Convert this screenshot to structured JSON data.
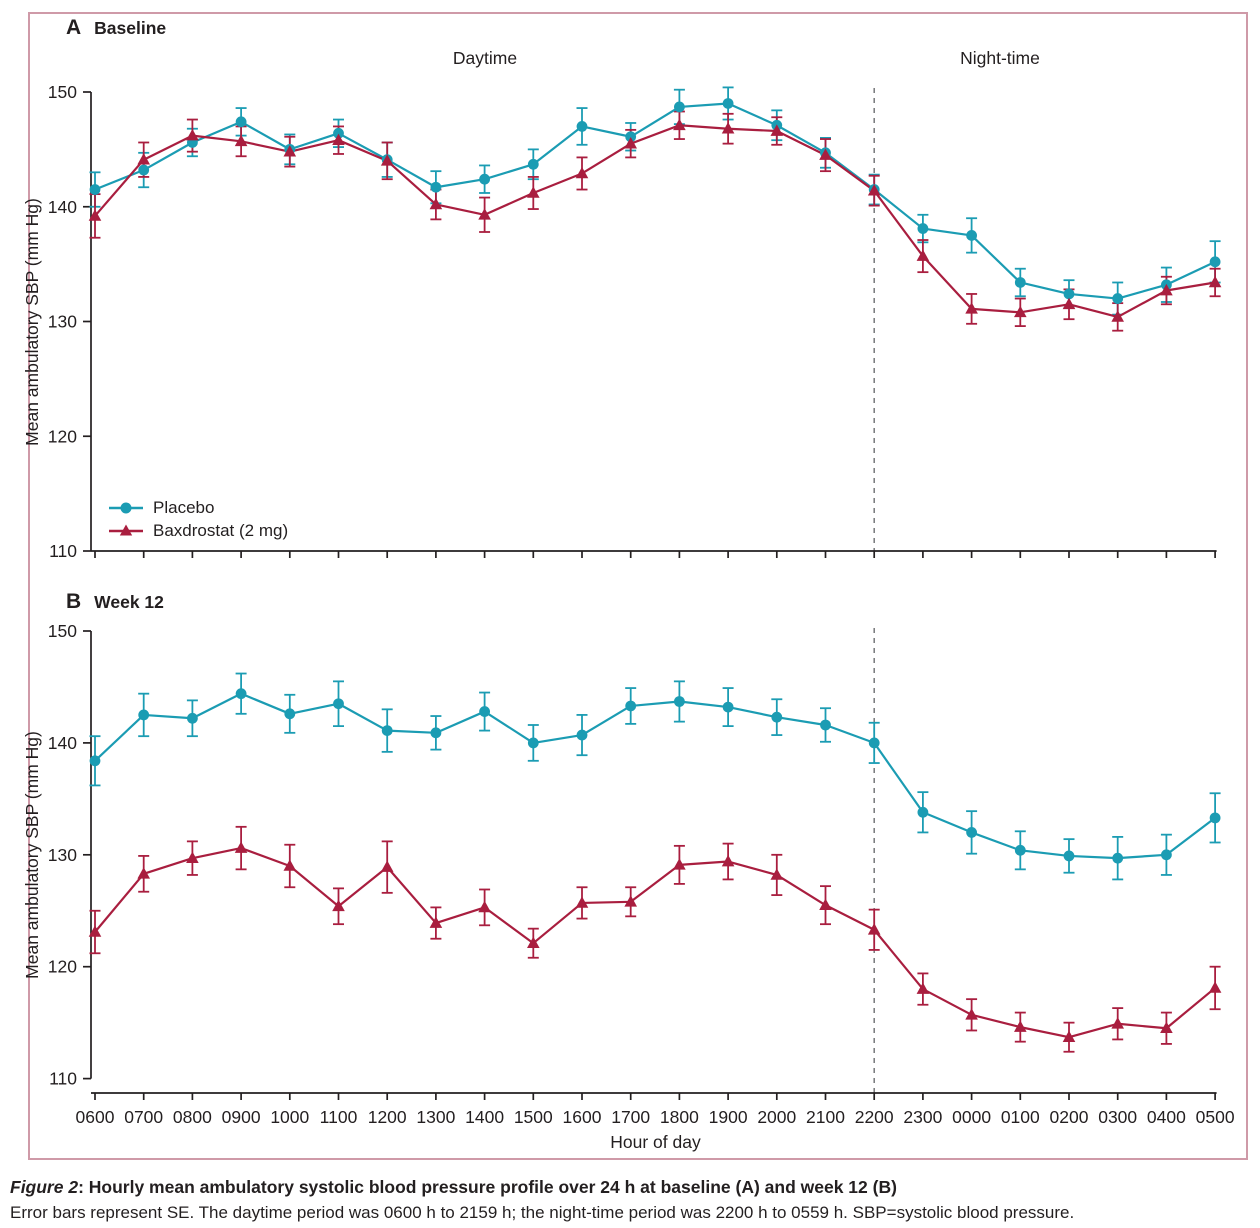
{
  "figure": {
    "panels": [
      {
        "label": "A",
        "title": "Baseline"
      },
      {
        "label": "B",
        "title": "Week 12"
      }
    ],
    "region_labels": {
      "daytime": "Daytime",
      "night": "Night-time"
    },
    "y_axis_label": "Mean ambulatory SBP (mm Hg)",
    "x_axis_label": "Hour of day",
    "legend": [
      {
        "label": "Placebo"
      },
      {
        "label": "Baxdrostat (2 mg)"
      }
    ],
    "caption": {
      "figure_label": "Figure 2",
      "title_rest": ": Hourly mean ambulatory systolic blood pressure profile over 24 h at baseline (A) and week 12 (B)",
      "note": "Error bars represent SE. The daytime period was 0600 h to 2159 h; the night-time period was 2200 h to 0559 h. SBP=systolic blood pressure."
    },
    "colors": {
      "placebo": "#1b9cb3",
      "baxdrostat": "#a91e3f",
      "frame": "#cf9aa8",
      "axis": "#231f20",
      "dashed": "#76777a"
    }
  },
  "chart_data": [
    {
      "type": "line",
      "panel": "A",
      "title": "Baseline",
      "xlabel": "Hour of day",
      "ylabel": "Mean ambulatory SBP (mm Hg)",
      "ylim": [
        110,
        150
      ],
      "yticks": [
        150,
        140,
        130,
        120,
        110
      ],
      "x": [
        "0600",
        "0700",
        "0800",
        "0900",
        "1000",
        "1100",
        "1200",
        "1300",
        "1400",
        "1500",
        "1600",
        "1700",
        "1800",
        "1900",
        "2000",
        "2100",
        "2200",
        "2300",
        "0000",
        "0100",
        "0200",
        "0300",
        "0400",
        "0500"
      ],
      "dashed_line_at": "2200",
      "grid": false,
      "legend_position": "lower-left",
      "series": [
        {
          "name": "Placebo",
          "marker": "circle",
          "color": "#1b9cb3",
          "values": [
            141.5,
            143.2,
            145.6,
            147.4,
            145.0,
            146.4,
            144.1,
            141.7,
            142.4,
            143.7,
            147.0,
            146.1,
            148.7,
            149.0,
            147.1,
            144.7,
            141.5,
            138.1,
            137.5,
            133.4,
            132.4,
            132.0,
            133.2,
            135.2
          ],
          "se": [
            1.5,
            1.5,
            1.2,
            1.2,
            1.3,
            1.2,
            1.5,
            1.4,
            1.2,
            1.3,
            1.6,
            1.2,
            1.5,
            1.4,
            1.3,
            1.3,
            1.3,
            1.2,
            1.5,
            1.2,
            1.2,
            1.4,
            1.5,
            1.8
          ]
        },
        {
          "name": "Baxdrostat (2 mg)",
          "marker": "triangle",
          "color": "#a91e3f",
          "values": [
            139.2,
            144.1,
            146.2,
            145.7,
            144.8,
            145.8,
            144.0,
            140.2,
            139.3,
            141.2,
            142.9,
            145.5,
            147.1,
            146.8,
            146.6,
            144.5,
            141.4,
            135.7,
            131.1,
            130.8,
            131.5,
            130.4,
            132.7,
            133.4
          ],
          "se": [
            1.9,
            1.5,
            1.4,
            1.3,
            1.3,
            1.2,
            1.6,
            1.3,
            1.5,
            1.4,
            1.4,
            1.2,
            1.2,
            1.3,
            1.2,
            1.4,
            1.3,
            1.4,
            1.3,
            1.2,
            1.3,
            1.2,
            1.2,
            1.2
          ]
        }
      ]
    },
    {
      "type": "line",
      "panel": "B",
      "title": "Week 12",
      "xlabel": "Hour of day",
      "ylabel": "Mean ambulatory SBP (mm Hg)",
      "ylim": [
        110,
        150
      ],
      "yticks": [
        150,
        140,
        130,
        120,
        110
      ],
      "x": [
        "0600",
        "0700",
        "0800",
        "0900",
        "1000",
        "1100",
        "1200",
        "1300",
        "1400",
        "1500",
        "1600",
        "1700",
        "1800",
        "1900",
        "2000",
        "2100",
        "2200",
        "2300",
        "0000",
        "0100",
        "0200",
        "0300",
        "0400",
        "0500"
      ],
      "dashed_line_at": "2200",
      "grid": false,
      "series": [
        {
          "name": "Placebo",
          "marker": "circle",
          "color": "#1b9cb3",
          "values": [
            138.4,
            142.5,
            142.2,
            144.4,
            142.6,
            143.5,
            141.1,
            140.9,
            142.8,
            140.0,
            140.7,
            143.3,
            143.7,
            143.2,
            142.3,
            141.6,
            140.0,
            133.8,
            132.0,
            130.4,
            129.9,
            129.7,
            130.0,
            133.3
          ],
          "se": [
            2.2,
            1.9,
            1.6,
            1.8,
            1.7,
            2.0,
            1.9,
            1.5,
            1.7,
            1.6,
            1.8,
            1.6,
            1.8,
            1.7,
            1.6,
            1.5,
            1.8,
            1.8,
            1.9,
            1.7,
            1.5,
            1.9,
            1.8,
            2.2
          ]
        },
        {
          "name": "Baxdrostat (2 mg)",
          "marker": "triangle",
          "color": "#a91e3f",
          "values": [
            123.1,
            128.3,
            129.7,
            130.6,
            129.0,
            125.4,
            128.9,
            123.9,
            125.3,
            122.1,
            125.7,
            125.8,
            129.1,
            129.4,
            128.2,
            125.5,
            123.3,
            118.0,
            115.7,
            114.6,
            113.7,
            114.9,
            114.5,
            118.1
          ],
          "se": [
            1.9,
            1.6,
            1.5,
            1.9,
            1.9,
            1.6,
            2.3,
            1.4,
            1.6,
            1.3,
            1.4,
            1.3,
            1.7,
            1.6,
            1.8,
            1.7,
            1.8,
            1.4,
            1.4,
            1.3,
            1.3,
            1.4,
            1.4,
            1.9
          ]
        }
      ]
    }
  ]
}
